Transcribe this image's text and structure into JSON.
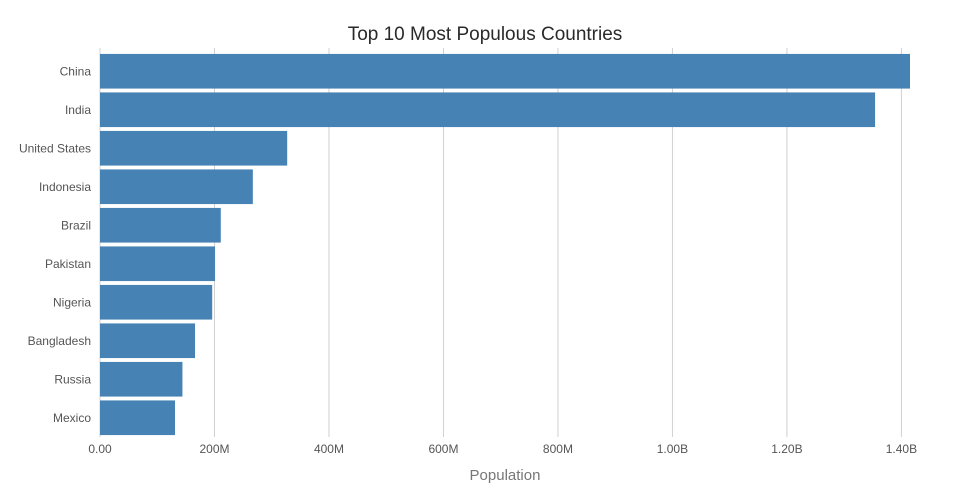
{
  "chart_data": {
    "type": "bar",
    "orientation": "horizontal",
    "title": "Top 10 Most Populous Countries",
    "xlabel": "Population",
    "ylabel": "",
    "categories": [
      "China",
      "India",
      "United States",
      "Indonesia",
      "Brazil",
      "Pakistan",
      "Nigeria",
      "Bangladesh",
      "Russia",
      "Mexico"
    ],
    "values": [
      1415000000,
      1354000000,
      327000000,
      267000000,
      211000000,
      201000000,
      196000000,
      166000000,
      144000000,
      131000000
    ],
    "xlim": [
      0,
      1415000000
    ],
    "x_ticks": [
      0,
      200000000,
      400000000,
      600000000,
      800000000,
      1000000000,
      1200000000,
      1400000000
    ],
    "x_tick_labels": [
      "0.00",
      "200M",
      "400M",
      "600M",
      "800M",
      "1.00B",
      "1.20B",
      "1.40B"
    ],
    "grid": "vertical",
    "bar_color": "#4682b4"
  }
}
